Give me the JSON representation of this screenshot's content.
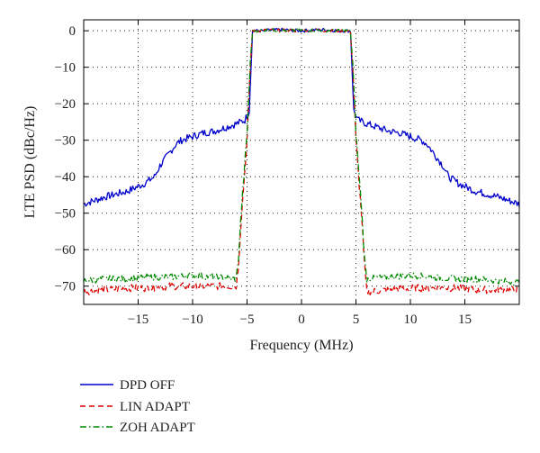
{
  "chart_data": {
    "type": "line",
    "title": "",
    "xlabel": "Frequency (MHz)",
    "ylabel": "LTE PSD (dBc/Hz)",
    "xlim": [
      -20,
      20
    ],
    "ylim": [
      -75,
      3
    ],
    "xticks": [
      -15,
      -10,
      -5,
      0,
      5,
      10,
      15
    ],
    "yticks": [
      0,
      -10,
      -20,
      -30,
      -40,
      -50,
      -60,
      -70
    ],
    "xtick_labels": [
      "−15",
      "−10",
      "−5",
      "0",
      "5",
      "10",
      "15"
    ],
    "ytick_labels": [
      "0",
      "−10",
      "−20",
      "−30",
      "−40",
      "−50",
      "−60",
      "−70"
    ],
    "grid": true,
    "legend_position": "below",
    "series": [
      {
        "name": "DPD OFF",
        "color": "#0000cc",
        "dash": "solid",
        "x": [
          -20,
          -18,
          -16,
          -14.5,
          -13.5,
          -13,
          -12.5,
          -12,
          -11.5,
          -11,
          -10.5,
          -10,
          -9,
          -8,
          -7,
          -6,
          -5.2,
          -4.8,
          -4.5,
          -3.5,
          -2,
          0,
          2,
          3.5,
          4.5,
          4.8,
          5.2,
          6,
          7,
          8,
          9,
          10,
          10.5,
          11,
          11.5,
          12,
          12.5,
          13,
          13.5,
          14.5,
          16,
          18,
          20
        ],
        "y": [
          -47.5,
          -45.5,
          -44,
          -42,
          -40,
          -37,
          -35,
          -33,
          -31,
          -30,
          -29.5,
          -29,
          -28,
          -27.5,
          -26.5,
          -25.5,
          -24.5,
          -22,
          0,
          0,
          0.3,
          0,
          0.3,
          0,
          0,
          -22,
          -24.5,
          -25.5,
          -26.5,
          -27.5,
          -28,
          -29,
          -29.5,
          -30,
          -31,
          -33,
          -35,
          -37,
          -40,
          -42,
          -44,
          -45.5,
          -47.5
        ]
      },
      {
        "name": "LIN ADAPT",
        "color": "#e00000",
        "dash": "dashed",
        "x": [
          -20,
          -18,
          -16,
          -14,
          -12,
          -10,
          -8,
          -6,
          -5.8,
          -5.5,
          -5,
          -4.7,
          -4.5,
          -3,
          -1,
          1,
          3,
          4.5,
          4.7,
          5,
          5.5,
          5.8,
          6,
          8,
          10,
          12,
          14,
          16,
          18,
          20
        ],
        "y": [
          -71.5,
          -71,
          -70.5,
          -70.5,
          -70,
          -70,
          -70,
          -70,
          -65,
          -50,
          -30,
          -10,
          0,
          0.2,
          0,
          0.2,
          0,
          0,
          -10,
          -30,
          -50,
          -65,
          -71.5,
          -71,
          -70.5,
          -70.5,
          -70.5,
          -71,
          -71,
          -71
        ],
        "noise": 1.0
      },
      {
        "name": "ZOH ADAPT",
        "color": "#008800",
        "dash": "dashdot",
        "x": [
          -20,
          -18,
          -16,
          -14,
          -12,
          -10,
          -8,
          -6,
          -5.8,
          -5.5,
          -5,
          -4.7,
          -4.5,
          -3,
          -1,
          1,
          3,
          4.5,
          4.7,
          5,
          5.5,
          5.8,
          6,
          8,
          10,
          12,
          14,
          16,
          18,
          20
        ],
        "y": [
          -68.5,
          -68,
          -68,
          -67.5,
          -67.5,
          -67,
          -67.5,
          -68,
          -63,
          -48,
          -28,
          -9,
          0,
          0.2,
          0,
          0.2,
          0,
          0,
          -9,
          -28,
          -48,
          -63,
          -68,
          -67.5,
          -67,
          -67.5,
          -68,
          -68,
          -68.5,
          -69
        ],
        "noise": 0.9
      }
    ]
  }
}
